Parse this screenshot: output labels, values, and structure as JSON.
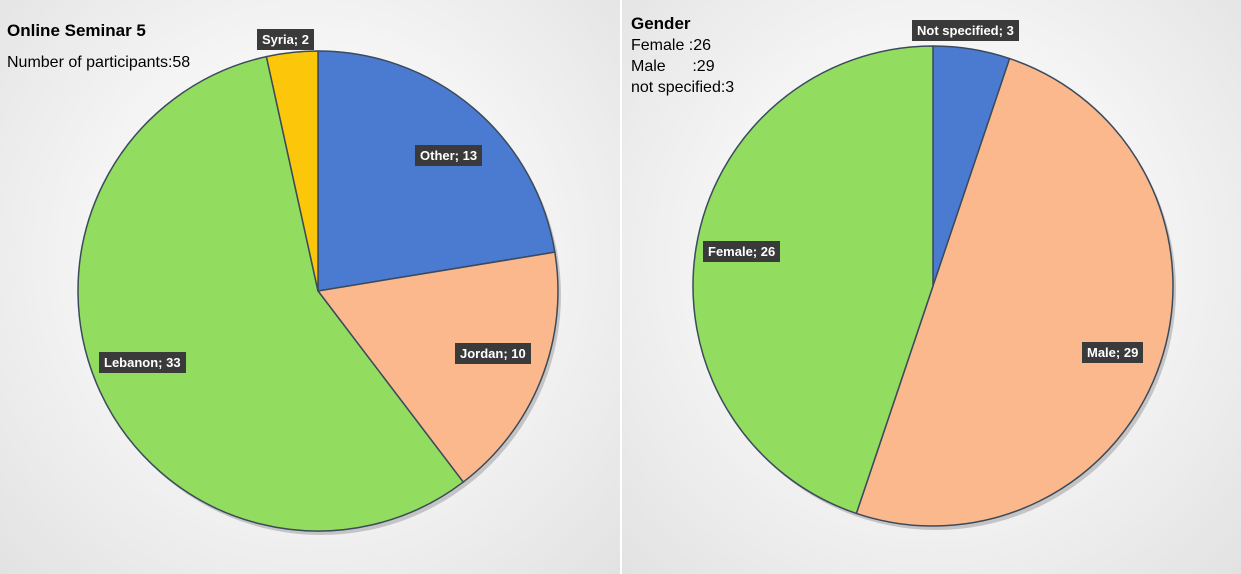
{
  "chart_data": [
    {
      "type": "pie",
      "title": "Online Seminar 5",
      "subtitle": "Number of participants:58",
      "categories": [
        "Other",
        "Jordan",
        "Lebanon",
        "Syria"
      ],
      "values": [
        13,
        10,
        33,
        2
      ],
      "labels": [
        "Other; 13",
        "Jordan; 10",
        "Lebanon; 33",
        "Syria; 2"
      ],
      "colors": [
        "#4a7bd0",
        "#fbb88c",
        "#92dd5f",
        "#fcc60a"
      ],
      "start": "top, clockwise",
      "legend": "none"
    },
    {
      "type": "pie",
      "title": "Gender",
      "subtitle_lines": [
        "Female :26",
        "Male      :29",
        "not specified:3"
      ],
      "categories": [
        "Not specified",
        "Male",
        "Female"
      ],
      "values": [
        3,
        29,
        26
      ],
      "labels": [
        "Not specified; 3",
        "Male; 29",
        "Female; 26"
      ],
      "colors": [
        "#4a7bd0",
        "#fbb88c",
        "#92dd5f"
      ],
      "start": "top, clockwise",
      "legend": "none"
    }
  ]
}
